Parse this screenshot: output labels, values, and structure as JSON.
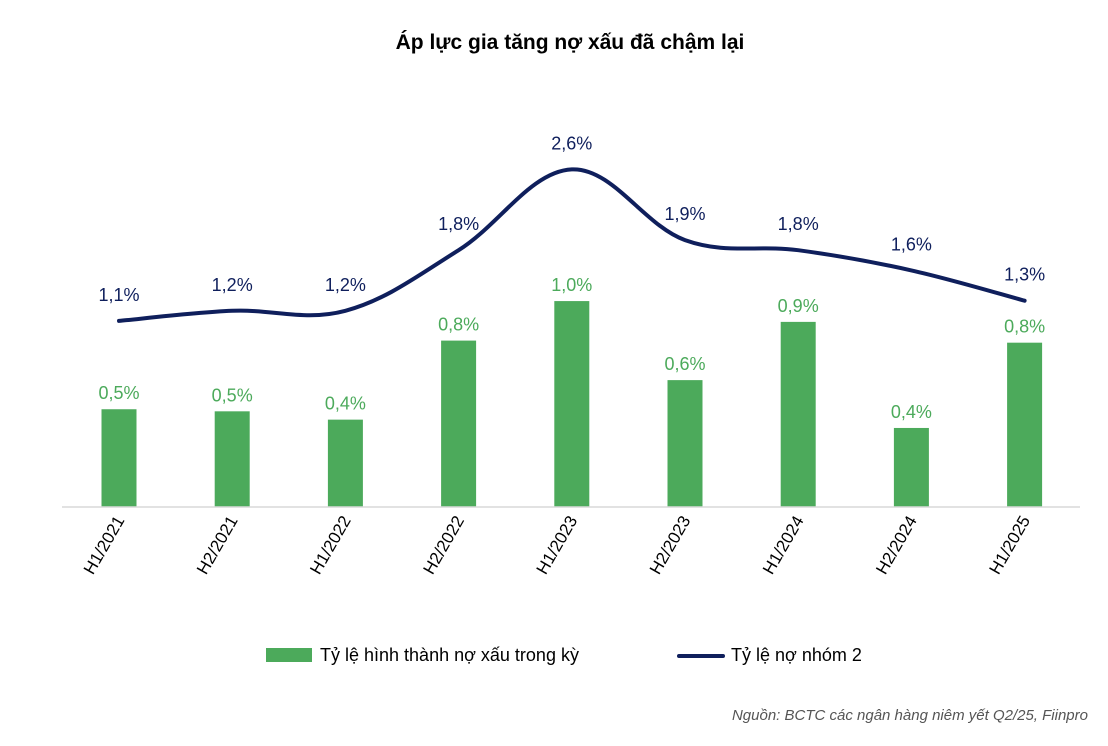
{
  "chart_data": {
    "type": "bar",
    "title": "Áp lực gia tăng nợ xấu đã chậm lại",
    "categories": [
      "H1/2021",
      "H2/2021",
      "H1/2022",
      "H2/2022",
      "H1/2023",
      "H2/2023",
      "H1/2024",
      "H2/2024",
      "H1/2025"
    ],
    "series": [
      {
        "name": "Tỷ lệ hình thành nợ xấu trong kỳ",
        "type": "bar",
        "color": "#4caa5b",
        "values": [
          0.47,
          0.46,
          0.42,
          0.8,
          0.99,
          0.61,
          0.89,
          0.38,
          0.79
        ],
        "labels": [
          "0,5%",
          "0,5%",
          "0,4%",
          "0,8%",
          "1,0%",
          "0,6%",
          "0,9%",
          "0,4%",
          "0,8%"
        ]
      },
      {
        "name": "Tỷ lệ nợ nhóm 2",
        "type": "line",
        "color": "#0f1f5c",
        "values": [
          1.1,
          1.2,
          1.2,
          1.8,
          2.6,
          1.9,
          1.8,
          1.6,
          1.3
        ],
        "labels": [
          "1,1%",
          "1,2%",
          "1,2%",
          "1,8%",
          "2,6%",
          "1,9%",
          "1,8%",
          "1,6%",
          "1,3%"
        ]
      }
    ],
    "xlabel": "",
    "ylabel": "",
    "grid": false,
    "legend_position": "bottom",
    "source": "Nguồn: BCTC các ngân hàng niêm yết Q2/25, Fiinpro"
  }
}
